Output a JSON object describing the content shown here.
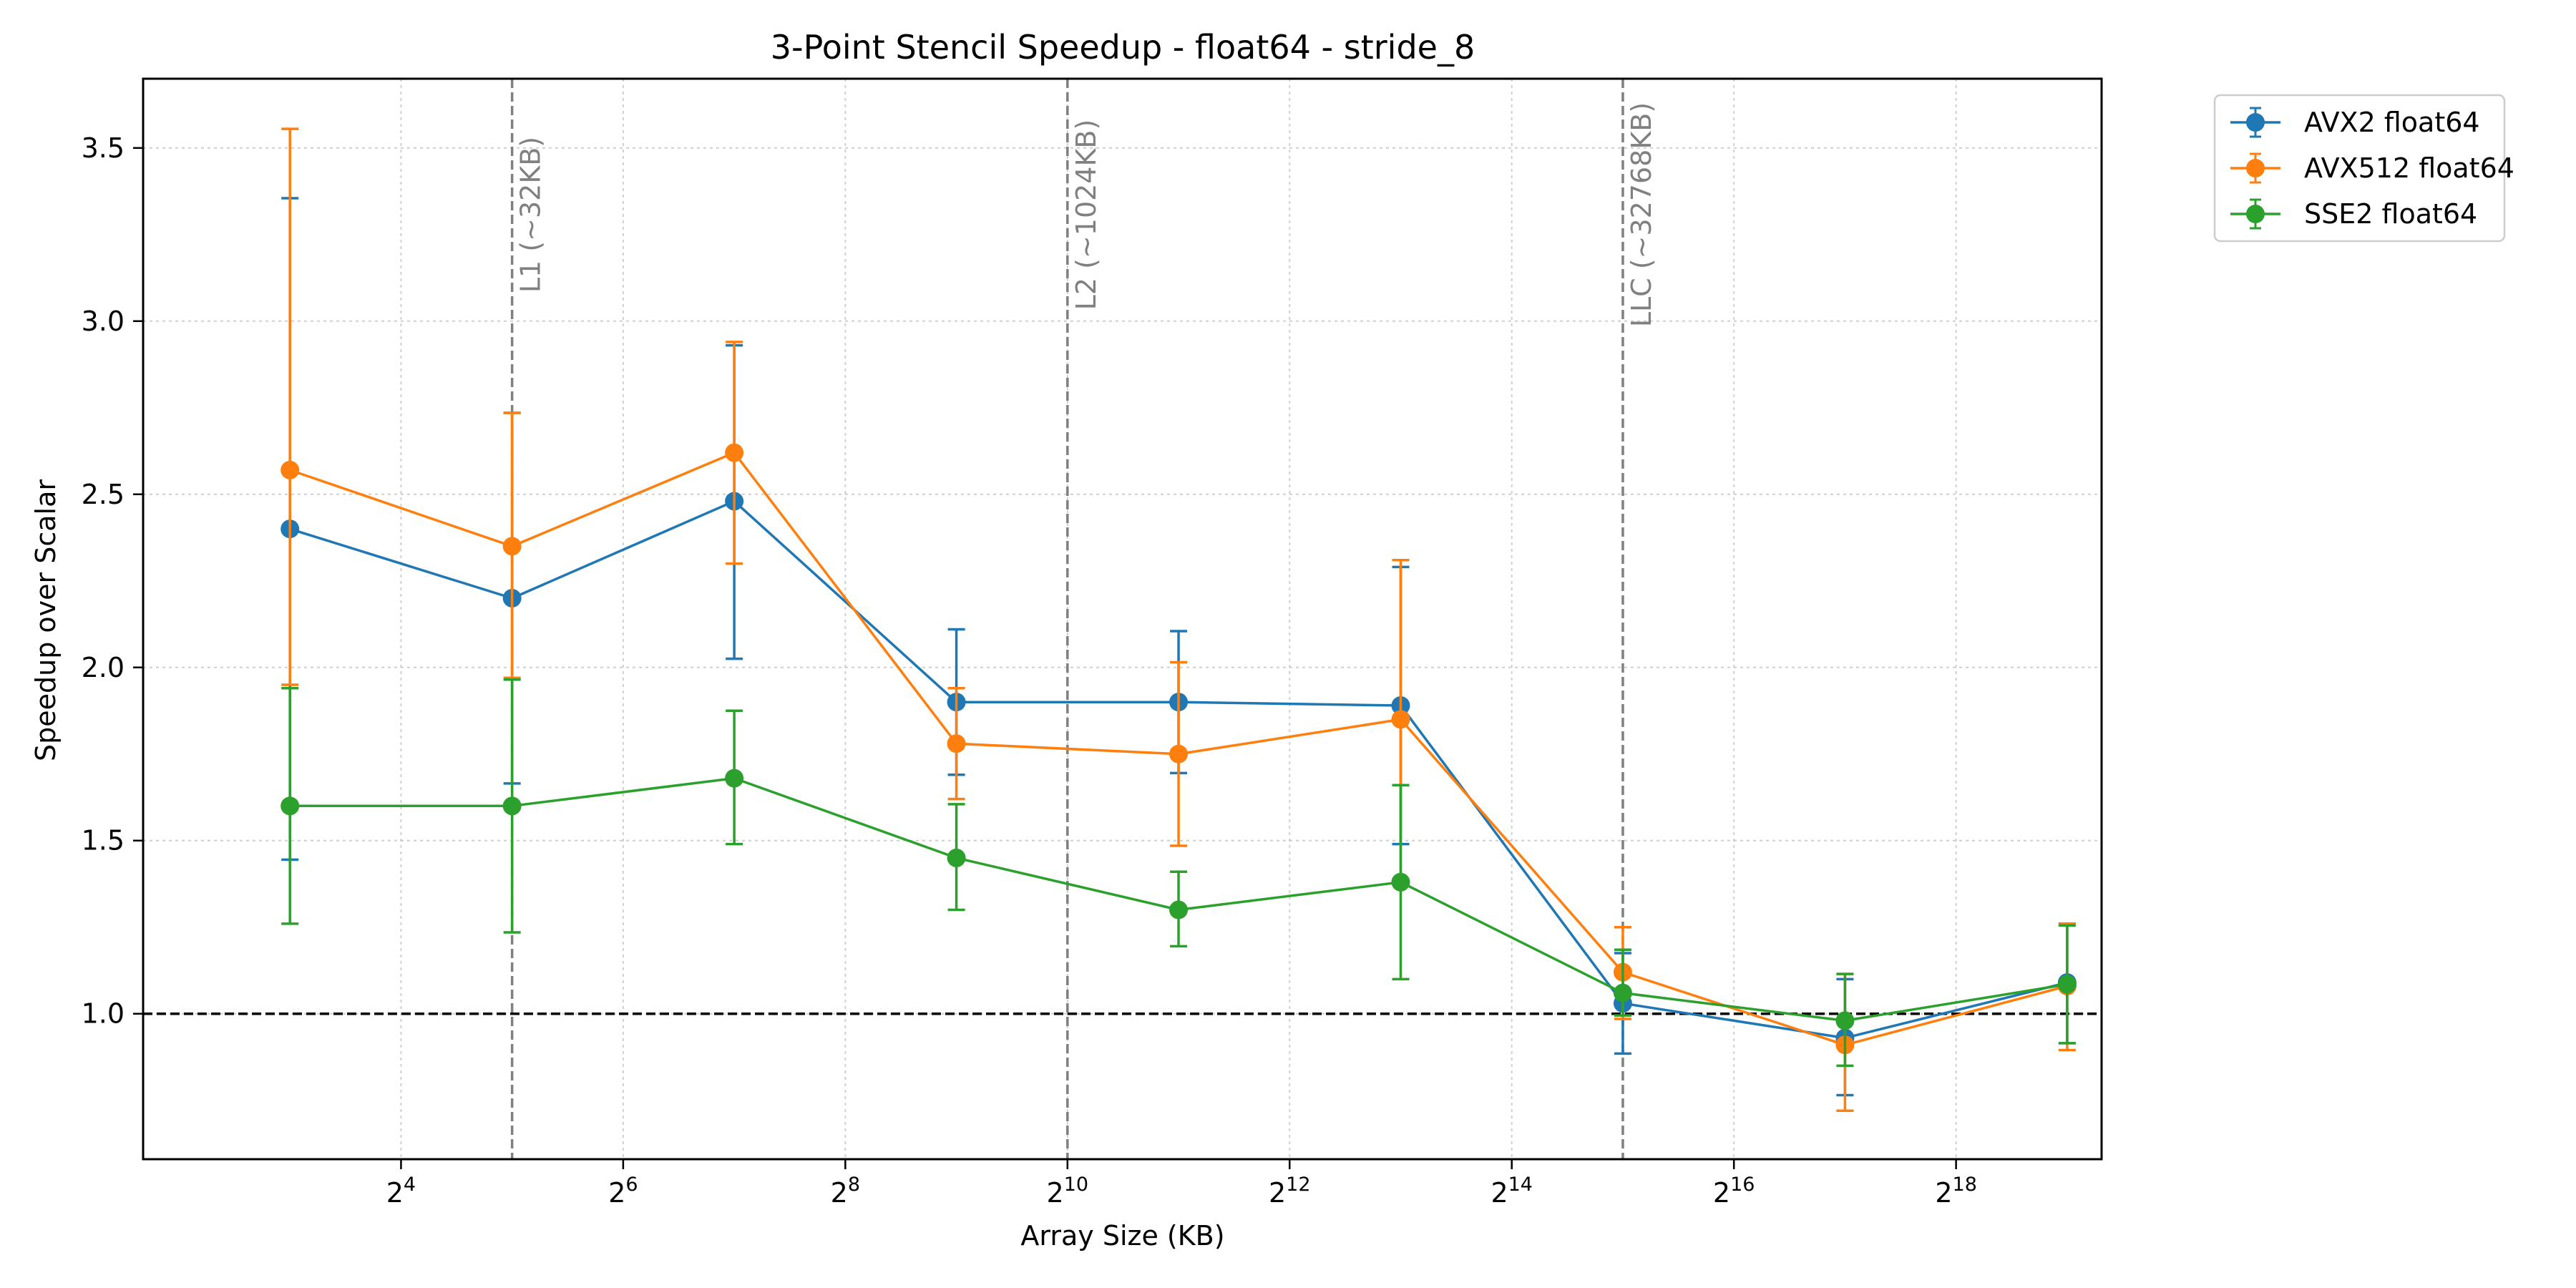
{
  "chart_data": {
    "type": "line",
    "title": "3-Point Stencil Speedup - float64 - stride_8",
    "xlabel": "Array Size (KB)",
    "ylabel": "Speedup over Scalar",
    "x_scale": "log2",
    "xlim": [
      3.2,
      650000
    ],
    "ylim": [
      0.58,
      3.7
    ],
    "x_ticks": [
      {
        "value": 16,
        "base": "2",
        "exp": "4"
      },
      {
        "value": 64,
        "base": "2",
        "exp": "6"
      },
      {
        "value": 256,
        "base": "2",
        "exp": "8"
      },
      {
        "value": 1024,
        "base": "2",
        "exp": "10"
      },
      {
        "value": 4096,
        "base": "2",
        "exp": "12"
      },
      {
        "value": 16384,
        "base": "2",
        "exp": "14"
      },
      {
        "value": 65536,
        "base": "2",
        "exp": "16"
      },
      {
        "value": 262144,
        "base": "2",
        "exp": "18"
      }
    ],
    "y_ticks": [
      {
        "value": 1.0,
        "label": "1.0"
      },
      {
        "value": 1.5,
        "label": "1.5"
      },
      {
        "value": 2.0,
        "label": "2.0"
      },
      {
        "value": 2.5,
        "label": "2.5"
      },
      {
        "value": 3.0,
        "label": "3.0"
      },
      {
        "value": 3.5,
        "label": "3.5"
      }
    ],
    "grid": true,
    "legend_position": "outside-top-right",
    "x": [
      8,
      32,
      128,
      512,
      2048,
      8192,
      32768,
      131072,
      524288
    ],
    "series": [
      {
        "name": "AVX2 float64",
        "color": "#1f77b4",
        "values": [
          2.4,
          2.2,
          2.48,
          1.9,
          1.9,
          1.89,
          1.03,
          0.93,
          1.09
        ],
        "err_low": [
          1.445,
          1.665,
          2.025,
          1.69,
          1.695,
          1.49,
          0.885,
          0.765,
          0.915
        ],
        "err_high": [
          3.355,
          2.735,
          2.93,
          2.11,
          2.105,
          2.29,
          1.175,
          1.1,
          1.26
        ]
      },
      {
        "name": "AVX512 float64",
        "color": "#ff7f0e",
        "values": [
          2.57,
          2.35,
          2.62,
          1.78,
          1.75,
          1.85,
          1.12,
          0.91,
          1.08
        ],
        "err_low": [
          1.95,
          1.97,
          2.3,
          1.62,
          1.485,
          1.39,
          0.985,
          0.72,
          0.895
        ],
        "err_high": [
          3.555,
          2.735,
          2.94,
          1.94,
          2.015,
          2.31,
          1.25,
          1.115,
          1.26
        ]
      },
      {
        "name": "SSE2 float64",
        "color": "#2ca02c",
        "values": [
          1.6,
          1.6,
          1.68,
          1.45,
          1.3,
          1.38,
          1.06,
          0.98,
          1.085
        ],
        "err_low": [
          1.26,
          1.235,
          1.49,
          1.3,
          1.195,
          1.1,
          0.995,
          0.85,
          0.915
        ],
        "err_high": [
          1.94,
          1.965,
          1.875,
          1.605,
          1.41,
          1.66,
          1.185,
          1.115,
          1.255
        ]
      }
    ],
    "reference_lines": [
      {
        "axis": "y",
        "value": 1.0,
        "style": "dashed",
        "color": "#000000"
      }
    ],
    "vertical_markers": [
      {
        "value": 32,
        "label": "L1 (~32KB)",
        "color": "#808080"
      },
      {
        "value": 1024,
        "label": "L2 (~1024KB)",
        "color": "#808080"
      },
      {
        "value": 32768,
        "label": "LLC (~32768KB)",
        "color": "#808080"
      }
    ]
  }
}
